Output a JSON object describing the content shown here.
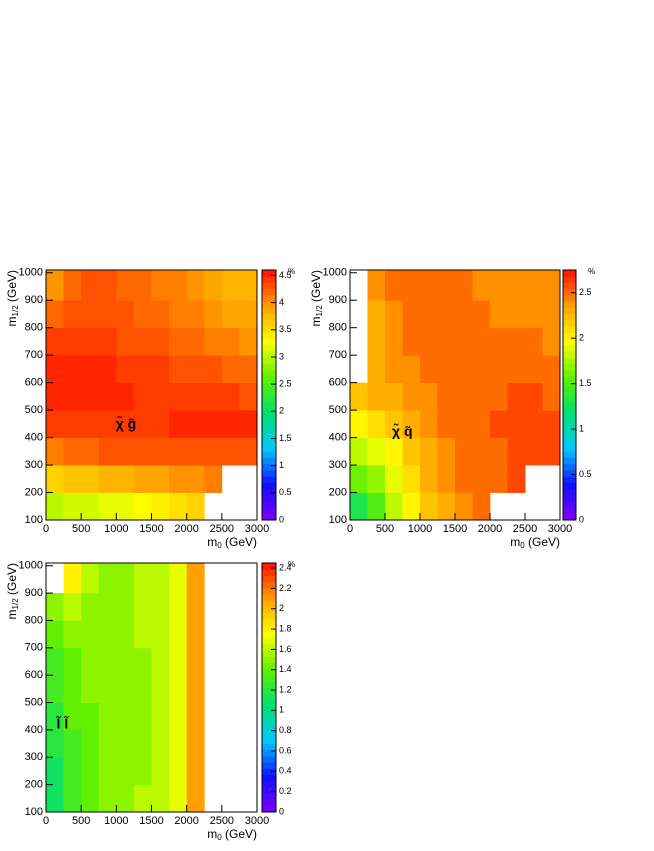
{
  "chart_data": [
    {
      "type": "heatmap",
      "label": "χ̃ g̃",
      "x_label": {
        "main": "m",
        "sub": "0",
        "unit": " (GeV)"
      },
      "y_label": {
        "main": "m",
        "sub": "1/2",
        "unit": " (GeV)"
      },
      "z_label": "%",
      "xlim": [
        0,
        3000
      ],
      "ylim": [
        100,
        1010
      ],
      "xticks": [
        0,
        500,
        1000,
        1500,
        2000,
        2500,
        3000
      ],
      "yticks": [
        100,
        200,
        300,
        400,
        500,
        600,
        700,
        800,
        900,
        1000
      ],
      "zlim": [
        0,
        4.6
      ],
      "zticks": [
        0,
        0.5,
        1,
        1.5,
        2,
        2.5,
        3,
        3.5,
        4,
        4.5
      ],
      "xbins": [
        0,
        250,
        500,
        750,
        1000,
        1250,
        1500,
        1750,
        2000,
        2250,
        2500,
        2750,
        3000
      ],
      "ybins": [
        100,
        200,
        300,
        400,
        500,
        600,
        700,
        800,
        900,
        1010
      ],
      "z": [
        [
          3.0,
          3.1,
          3.1,
          3.2,
          3.2,
          3.3,
          3.4,
          3.5,
          3.6,
          null,
          null,
          null
        ],
        [
          3.6,
          3.7,
          3.7,
          3.8,
          3.8,
          3.9,
          3.9,
          4.0,
          4.0,
          4.1,
          null,
          null
        ],
        [
          4.1,
          4.2,
          4.2,
          4.3,
          4.3,
          4.3,
          4.3,
          4.3,
          4.3,
          4.3,
          4.3,
          4.3
        ],
        [
          4.4,
          4.4,
          4.4,
          4.4,
          4.4,
          4.4,
          4.4,
          4.5,
          4.5,
          4.5,
          4.5,
          4.5
        ],
        [
          4.5,
          4.5,
          4.5,
          4.5,
          4.5,
          4.4,
          4.4,
          4.4,
          4.4,
          4.4,
          4.4,
          4.3
        ],
        [
          4.5,
          4.5,
          4.5,
          4.5,
          4.4,
          4.4,
          4.4,
          4.3,
          4.3,
          4.3,
          4.2,
          4.2
        ],
        [
          4.4,
          4.4,
          4.4,
          4.4,
          4.3,
          4.3,
          4.3,
          4.2,
          4.2,
          4.1,
          4.1,
          4.0
        ],
        [
          4.2,
          4.3,
          4.3,
          4.3,
          4.3,
          4.2,
          4.2,
          4.1,
          4.1,
          4.0,
          3.9,
          3.9
        ],
        [
          4.0,
          4.2,
          4.3,
          4.3,
          4.2,
          4.2,
          4.1,
          4.1,
          4.0,
          3.9,
          3.8,
          3.8
        ]
      ],
      "palette": [
        "#7f00ff",
        "#1010ff",
        "#00c8ff",
        "#00e070",
        "#60f000",
        "#ffff00",
        "#ffa000",
        "#ff1000"
      ]
    },
    {
      "type": "heatmap",
      "label": "χ̃ q̃",
      "x_label": {
        "main": "m",
        "sub": "0",
        "unit": " (GeV)"
      },
      "y_label": {
        "main": "m",
        "sub": "1/2",
        "unit": " (GeV)"
      },
      "z_label": "%",
      "xlim": [
        0,
        3000
      ],
      "ylim": [
        100,
        1010
      ],
      "xticks": [
        0,
        500,
        1000,
        1500,
        2000,
        2500,
        3000
      ],
      "yticks": [
        100,
        200,
        300,
        400,
        500,
        600,
        700,
        800,
        900,
        1000
      ],
      "zlim": [
        0,
        2.75
      ],
      "zticks": [
        0,
        0.5,
        1,
        1.5,
        2,
        2.5
      ],
      "xbins": [
        0,
        250,
        500,
        750,
        1000,
        1250,
        1500,
        1750,
        2000,
        2250,
        2500,
        2750,
        3000
      ],
      "ybins": [
        100,
        200,
        300,
        400,
        500,
        600,
        700,
        800,
        900,
        1010
      ],
      "z": [
        [
          1.3,
          1.5,
          1.8,
          2.0,
          2.2,
          2.3,
          2.4,
          2.5,
          null,
          null,
          null,
          null
        ],
        [
          1.6,
          1.7,
          1.9,
          2.1,
          2.3,
          2.4,
          2.5,
          2.5,
          2.5,
          2.6,
          null,
          null
        ],
        [
          1.8,
          1.9,
          2.0,
          2.2,
          2.3,
          2.4,
          2.5,
          2.5,
          2.5,
          2.6,
          2.6,
          2.6
        ],
        [
          2.0,
          2.1,
          2.2,
          2.3,
          2.4,
          2.5,
          2.5,
          2.5,
          2.6,
          2.6,
          2.6,
          2.6
        ],
        [
          2.2,
          2.3,
          2.3,
          2.4,
          2.4,
          2.5,
          2.5,
          2.5,
          2.5,
          2.6,
          2.6,
          2.5
        ],
        [
          null,
          2.3,
          2.4,
          2.4,
          2.5,
          2.5,
          2.5,
          2.5,
          2.5,
          2.5,
          2.5,
          2.5
        ],
        [
          null,
          2.3,
          2.4,
          2.5,
          2.5,
          2.5,
          2.5,
          2.5,
          2.5,
          2.5,
          2.5,
          2.4
        ],
        [
          null,
          2.3,
          2.4,
          2.5,
          2.5,
          2.5,
          2.5,
          2.5,
          2.4,
          2.4,
          2.4,
          2.4
        ],
        [
          null,
          2.4,
          2.5,
          2.5,
          2.5,
          2.5,
          2.5,
          2.4,
          2.4,
          2.4,
          2.4,
          2.4
        ]
      ],
      "palette": [
        "#7f00ff",
        "#1010ff",
        "#00c8ff",
        "#00e070",
        "#60f000",
        "#ffff00",
        "#ffa000",
        "#ff1000"
      ]
    },
    {
      "type": "heatmap",
      "label": "l̃ l̃",
      "x_label": {
        "main": "m",
        "sub": "0",
        "unit": " (GeV)"
      },
      "y_label": {
        "main": "m",
        "sub": "1/2",
        "unit": " (GeV)"
      },
      "z_label": "%",
      "xlim": [
        0,
        3000
      ],
      "ylim": [
        100,
        1010
      ],
      "xticks": [
        0,
        500,
        1000,
        1500,
        2000,
        2500,
        3000
      ],
      "yticks": [
        100,
        200,
        300,
        400,
        500,
        600,
        700,
        800,
        900,
        1000
      ],
      "zlim": [
        0,
        2.45
      ],
      "zticks": [
        0,
        0.2,
        0.4,
        0.6,
        0.8,
        1,
        1.2,
        1.4,
        1.6,
        1.8,
        2,
        2.2,
        2.4
      ],
      "xbins": [
        0,
        250,
        500,
        750,
        1000,
        1250,
        1500,
        1750,
        2000,
        2250,
        2500,
        2750,
        3000
      ],
      "ybins": [
        100,
        200,
        300,
        400,
        500,
        600,
        700,
        800,
        900,
        1010
      ],
      "z": [
        [
          1.1,
          1.3,
          1.4,
          1.5,
          1.5,
          1.6,
          1.6,
          1.7,
          2.1,
          null,
          null,
          null
        ],
        [
          1.1,
          1.3,
          1.4,
          1.5,
          1.5,
          1.5,
          1.6,
          1.7,
          2.1,
          null,
          null,
          null
        ],
        [
          1.2,
          1.3,
          1.4,
          1.5,
          1.5,
          1.5,
          1.6,
          1.7,
          2.1,
          null,
          null,
          null
        ],
        [
          1.2,
          1.4,
          1.4,
          1.5,
          1.5,
          1.5,
          1.6,
          1.7,
          2.1,
          null,
          null,
          null
        ],
        [
          1.3,
          1.4,
          1.5,
          1.5,
          1.5,
          1.5,
          1.6,
          1.7,
          2.1,
          null,
          null,
          null
        ],
        [
          1.3,
          1.4,
          1.5,
          1.5,
          1.5,
          1.5,
          1.6,
          1.7,
          2.1,
          null,
          null,
          null
        ],
        [
          1.4,
          1.5,
          1.5,
          1.5,
          1.5,
          1.6,
          1.6,
          1.7,
          2.1,
          null,
          null,
          null
        ],
        [
          1.5,
          1.6,
          1.5,
          1.5,
          1.5,
          1.6,
          1.6,
          1.7,
          2.1,
          null,
          null,
          null
        ],
        [
          null,
          1.8,
          1.6,
          1.5,
          1.5,
          1.6,
          1.6,
          1.7,
          2.1,
          null,
          null,
          null
        ]
      ],
      "palette": [
        "#7f00ff",
        "#1010ff",
        "#00c8ff",
        "#00e070",
        "#60f000",
        "#ffff00",
        "#ffa000",
        "#ff1000"
      ]
    }
  ]
}
